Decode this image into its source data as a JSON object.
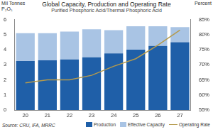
{
  "chart_data": {
    "type": "bar",
    "title": "Global Capacity, Production and Operating Rate",
    "subtitle": "Purified Phosphoric Acid/Thermal Phosphoric Acid",
    "ylabel": "Mil Tonnes\nP₂O₅",
    "y2label": "Percent",
    "source": "Source: CRU, IFA, MRRC",
    "categories": [
      "20",
      "21",
      "22",
      "23",
      "24",
      "25",
      "26",
      "27"
    ],
    "series": [
      {
        "name": "Production",
        "color": "#1f5fa8",
        "values": [
          3.25,
          3.3,
          3.35,
          3.5,
          3.75,
          4.0,
          4.25,
          4.5
        ]
      },
      {
        "name": "Effective Capacity",
        "color": "#a9c4e4",
        "values": [
          1.85,
          1.8,
          1.85,
          1.85,
          1.55,
          1.55,
          1.3,
          1.0
        ]
      },
      {
        "name": "Operating Rate",
        "color": "#b59a4c",
        "type": "line",
        "axis": "y2",
        "line_style": "solid",
        "values": [
          64,
          65,
          65,
          66.5,
          69.5,
          72,
          76.5,
          81.5
        ]
      }
    ],
    "stacked": true,
    "ylim": [
      0,
      6
    ],
    "yticks": [
      0,
      1,
      2,
      3,
      4,
      5,
      6
    ],
    "y2lim": [
      55,
      85
    ],
    "y2ticks": [
      {
        "value": 55,
        "label": "55%"
      },
      {
        "value": 60,
        "label": "60%"
      },
      {
        "value": 65,
        "label": "65%"
      },
      {
        "value": 70,
        "label": "70%"
      },
      {
        "value": 75,
        "label": "75%"
      },
      {
        "value": 80,
        "label": "80%"
      },
      {
        "value": 85,
        "label": "85%"
      }
    ],
    "grid": false,
    "legend": "bottom right"
  }
}
